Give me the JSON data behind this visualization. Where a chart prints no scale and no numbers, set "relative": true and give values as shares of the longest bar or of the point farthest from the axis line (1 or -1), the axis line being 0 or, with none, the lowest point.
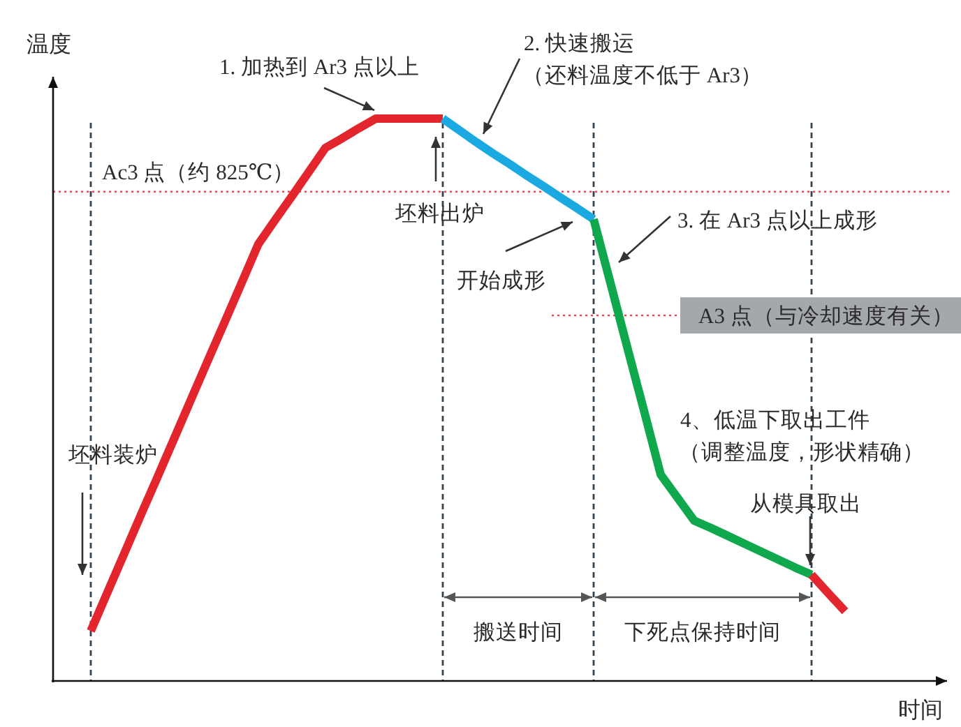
{
  "chart_data": {
    "type": "line",
    "relative": true,
    "xlabel": "时间",
    "ylabel": "温度",
    "line_style": "solid",
    "grid": "x",
    "categories": [
      null,
      null,
      null,
      null,
      null,
      null,
      null,
      null,
      null,
      null,
      null,
      null,
      null,
      null,
      null,
      null,
      null,
      null,
      null,
      null,
      null,
      null,
      null,
      null,
      null,
      null,
      null,
      null,
      null,
      null,
      null,
      null,
      null,
      null,
      null,
      null,
      null,
      null,
      null,
      null,
      null,
      null,
      null,
      null,
      null,
      null
    ],
    "series": [
      {
        "color": "#e3262d",
        "values": [
          0.089,
          0.158,
          0.227,
          0.296,
          0.364,
          0.433,
          0.502,
          0.571,
          0.639,
          0.708,
          0.777,
          0.82,
          0.862,
          0.905,
          0.948,
          0.965,
          0.983,
          1,
          1,
          1,
          1,
          1,
          null,
          null,
          null,
          null,
          null,
          null,
          null,
          null,
          null,
          null,
          null,
          null,
          null,
          null,
          null,
          null,
          null,
          null,
          null,
          null,
          null,
          null,
          null,
          null
        ]
      },
      {
        "color": "#1ba9e1",
        "values": [
          null,
          null,
          null,
          null,
          null,
          null,
          null,
          null,
          null,
          null,
          null,
          null,
          null,
          null,
          null,
          null,
          null,
          null,
          null,
          null,
          null,
          1,
          0.979,
          0.958,
          0.938,
          0.919,
          0.899,
          0.88,
          0.86,
          0.841,
          0.821,
          null,
          null,
          null,
          null,
          null,
          null,
          null,
          null,
          null,
          null,
          null,
          null,
          null,
          null,
          null
        ]
      },
      {
        "color": "#10a84c",
        "values": [
          null,
          null,
          null,
          null,
          null,
          null,
          null,
          null,
          null,
          null,
          null,
          null,
          null,
          null,
          null,
          null,
          null,
          null,
          null,
          null,
          null,
          null,
          null,
          null,
          null,
          null,
          null,
          null,
          null,
          null,
          0.821,
          0.708,
          0.594,
          0.481,
          0.367,
          0.326,
          0.285,
          0.272,
          0.258,
          0.244,
          0.23,
          0.216,
          0.202,
          0.189,
          null,
          null
        ]
      },
      {
        "color": "#e3262d",
        "values": [
          null,
          null,
          null,
          null,
          null,
          null,
          null,
          null,
          null,
          null,
          null,
          null,
          null,
          null,
          null,
          null,
          null,
          null,
          null,
          null,
          null,
          null,
          null,
          null,
          null,
          null,
          null,
          null,
          null,
          null,
          null,
          null,
          null,
          null,
          null,
          null,
          null,
          null,
          null,
          null,
          null,
          null,
          null,
          0.189,
          0.156,
          0.124
        ]
      }
    ],
    "ref_lines": [
      {
        "axis": "y",
        "value": 0.87,
        "label": "Ac3 点（约 825℃）",
        "color": "#e0505c",
        "line_style": "dotted"
      },
      {
        "axis": "y",
        "value": 0.65,
        "label": "A3 点（与冷却速度有关）",
        "color": "#c84a58",
        "line_style": "dotted"
      }
    ],
    "annotations": [
      "1. 加热到 Ar3 点以上",
      "2. 快速搬运（还料温度不低于 Ar3）",
      "坯料出炉",
      "开始成形",
      "3. 在 Ar3 点以上成形",
      "4、低温下取出工件（调整温度，形状精确）",
      "从模具取出",
      "坯料装炉",
      "搬送时间",
      "下死点保持时间"
    ]
  }
}
